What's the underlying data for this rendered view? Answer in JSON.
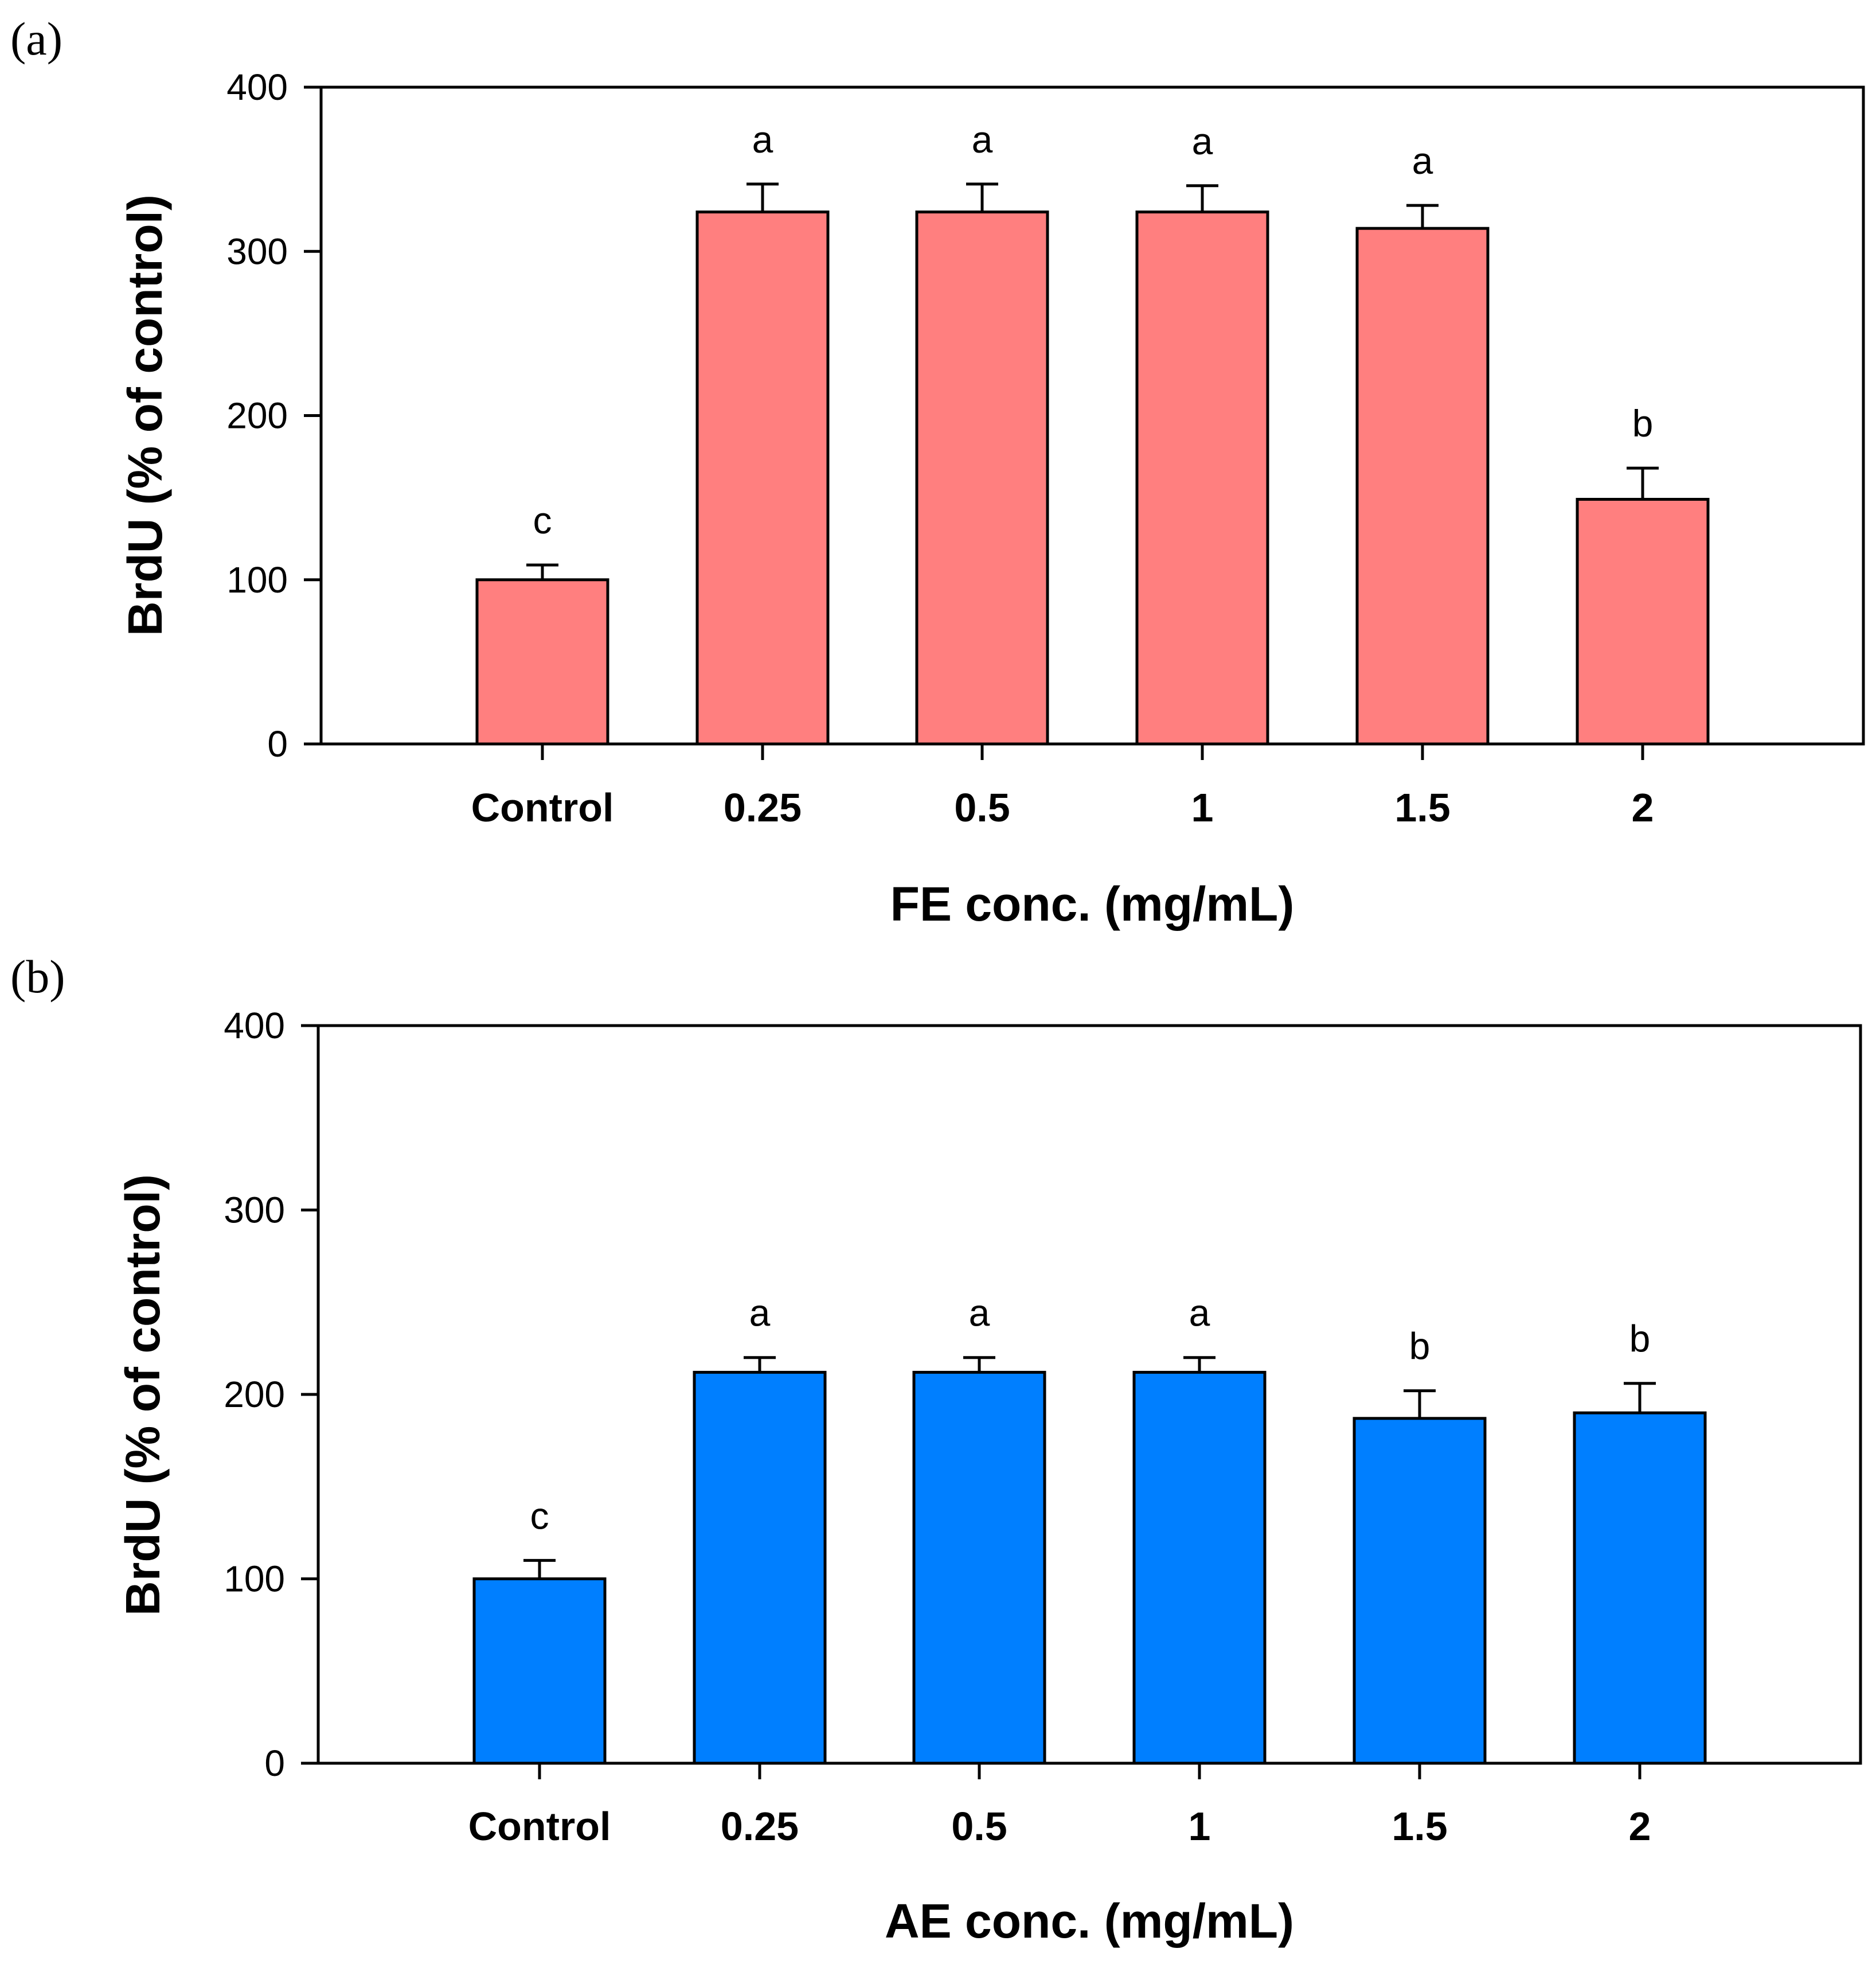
{
  "chart_data": [
    {
      "panel_label": "(a)",
      "type": "bar",
      "categories": [
        "Control",
        "0.25",
        "0.5",
        "1",
        "1.5",
        "2"
      ],
      "values": [
        100,
        324,
        324,
        324,
        314,
        149
      ],
      "errors": [
        9,
        17,
        17,
        16,
        14,
        19
      ],
      "significance": [
        "c",
        "a",
        "a",
        "a",
        "a",
        "b"
      ],
      "xlabel": "FE conc. (mg/mL)",
      "ylabel": "BrdU (% of control)",
      "ylim": [
        0,
        400
      ],
      "yticks": [
        0,
        100,
        200,
        300,
        400
      ],
      "bar_color": "#FF7F7F",
      "grid": false
    },
    {
      "panel_label": "(b)",
      "type": "bar",
      "categories": [
        "Control",
        "0.25",
        "0.5",
        "1",
        "1.5",
        "2"
      ],
      "values": [
        100,
        212,
        212,
        212,
        187,
        190
      ],
      "errors": [
        10,
        8,
        8,
        8,
        15,
        16
      ],
      "significance": [
        "c",
        "a",
        "a",
        "a",
        "b",
        "b"
      ],
      "xlabel": "AE conc. (mg/mL)",
      "ylabel": "BrdU (% of control)",
      "ylim": [
        0,
        400
      ],
      "yticks": [
        0,
        100,
        200,
        300,
        400
      ],
      "bar_color": "#007FFF",
      "grid": false
    }
  ]
}
